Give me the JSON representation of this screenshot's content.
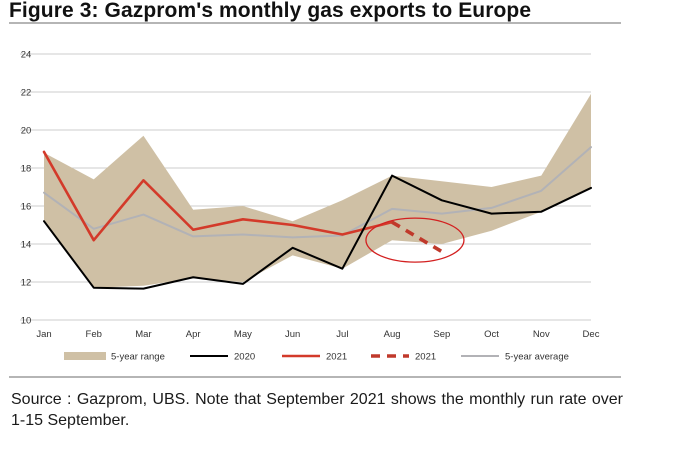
{
  "title": "Figure 3: Gazprom's monthly gas exports to Europe",
  "source": "Source : Gazprom, UBS. Note that September 2021 shows the monthly run rate over 1-15 September.",
  "chart_data": {
    "type": "line",
    "categories": [
      "Jan",
      "Feb",
      "Mar",
      "Apr",
      "May",
      "Jun",
      "Jul",
      "Aug",
      "Sep",
      "Oct",
      "Nov",
      "Dec"
    ],
    "ylim": [
      10,
      24
    ],
    "yticks": [
      10,
      12,
      14,
      16,
      18,
      20,
      22,
      24
    ],
    "grid": true,
    "legend_position": "bottom",
    "band": {
      "name": "5-year range",
      "color": "#cfc0a5",
      "low": [
        15.2,
        11.7,
        11.8,
        12.2,
        12.0,
        13.4,
        12.7,
        14.2,
        14.0,
        14.7,
        15.7,
        17.0
      ],
      "high": [
        18.8,
        17.4,
        19.7,
        15.8,
        16.0,
        15.2,
        16.3,
        17.6,
        17.3,
        17.0,
        17.6,
        21.9
      ]
    },
    "series": [
      {
        "name": "2020",
        "color": "#000000",
        "style": "solid",
        "width": 2,
        "values": [
          15.2,
          11.7,
          11.65,
          12.25,
          11.9,
          13.8,
          12.7,
          17.6,
          16.3,
          15.6,
          15.7,
          16.95
        ]
      },
      {
        "name": "2021",
        "color": "#d33a2a",
        "style": "solid",
        "width": 2.6,
        "values": [
          18.85,
          14.2,
          17.35,
          14.75,
          15.3,
          15.0,
          14.5,
          15.15,
          null,
          null,
          null,
          null
        ]
      },
      {
        "name": "2021",
        "color": "#c0392b",
        "style": "dashed",
        "width": 3.6,
        "values": [
          null,
          null,
          null,
          null,
          null,
          null,
          null,
          15.15,
          13.6,
          null,
          null,
          null
        ]
      },
      {
        "name": "5-year average",
        "color": "#b2b2b6",
        "style": "solid",
        "width": 2,
        "values": [
          16.7,
          14.8,
          15.55,
          14.4,
          14.5,
          14.35,
          14.45,
          15.85,
          15.6,
          15.9,
          16.8,
          19.1
        ]
      }
    ],
    "annotation": {
      "type": "ellipse",
      "color": "#d32020",
      "center_x": "Aug-Sep",
      "center_y": 14.1
    }
  }
}
